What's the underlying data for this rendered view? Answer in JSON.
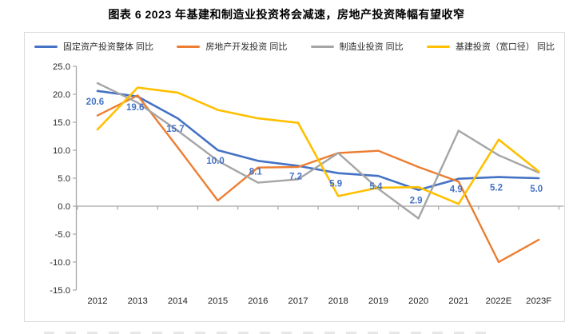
{
  "title": "图表 6  2023 年基建和制造业投资将会减速，房地产投资降幅有望收窄",
  "chart_data": {
    "type": "line",
    "categories": [
      "2012",
      "2013",
      "2014",
      "2015",
      "2016",
      "2017",
      "2018",
      "2019",
      "2020",
      "2021",
      "2022E",
      "2023F"
    ],
    "series": [
      {
        "name": "固定资产投资整体 同比",
        "color": "#4472C4",
        "stroke_width": 2.6,
        "show_labels": true,
        "values": [
          20.6,
          19.6,
          15.7,
          10.0,
          8.1,
          7.2,
          5.9,
          5.4,
          2.9,
          4.9,
          5.2,
          5.0
        ]
      },
      {
        "name": "房地产开发投资 同比",
        "color": "#ED7D31",
        "stroke_width": 2.4,
        "show_labels": false,
        "values": [
          16.2,
          19.8,
          10.5,
          1.0,
          6.9,
          7.0,
          9.5,
          9.9,
          7.0,
          4.4,
          -10.0,
          -6.0
        ]
      },
      {
        "name": "制造业投资 同比",
        "color": "#A5A5A5",
        "stroke_width": 2.4,
        "show_labels": false,
        "values": [
          22.0,
          18.5,
          13.5,
          8.1,
          4.2,
          4.8,
          9.5,
          3.1,
          -2.2,
          13.5,
          9.1,
          6.0
        ]
      },
      {
        "name": "基建投资（宽口径） 同比",
        "color": "#FFC000",
        "stroke_width": 2.6,
        "show_labels": false,
        "values": [
          13.7,
          21.2,
          20.3,
          17.2,
          15.7,
          14.9,
          1.8,
          3.3,
          3.4,
          0.4,
          11.9,
          6.2
        ]
      }
    ],
    "ylim": [
      -15,
      25
    ],
    "yticks": [
      25,
      20,
      15,
      10,
      5,
      0,
      -5,
      -10,
      -15
    ],
    "ytick_format_decimals": 1,
    "legend_position": "top",
    "grid": false,
    "axis_color": "#a6a6a6",
    "tick_text_color": "#262626",
    "data_label_color": "#4472C4"
  }
}
